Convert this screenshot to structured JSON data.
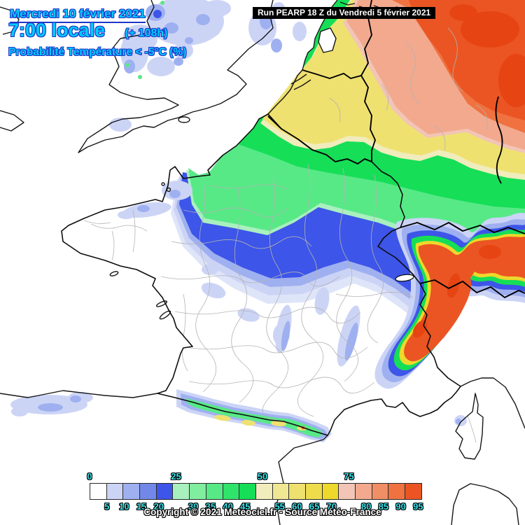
{
  "title_block": {
    "date": "Mercredi 10 février 2021",
    "time": "7:00 locale",
    "forecast_offset": "(+ 108h)",
    "subtitle": "Probabilité Température < -5°C (%)"
  },
  "run_banner": {
    "text": "Run PEARP 18 Z du Vendredi 5 février 2021"
  },
  "footer": {
    "copyright": "Copyright © 2021 Meteociel.fr - Source Météo-France"
  },
  "legend": {
    "unit": "%",
    "top_ticks": [
      0,
      25,
      50,
      75
    ],
    "bottom_ticks": [
      5,
      10,
      15,
      20,
      30,
      35,
      40,
      45,
      55,
      60,
      65,
      70,
      80,
      85,
      90,
      95
    ],
    "boxes": [
      {
        "from": 0,
        "to": 5,
        "color": "#ffffff"
      },
      {
        "from": 5,
        "to": 10,
        "color": "#ccd4f6"
      },
      {
        "from": 10,
        "to": 15,
        "color": "#9fb0f0"
      },
      {
        "from": 15,
        "to": 20,
        "color": "#7288e9"
      },
      {
        "from": 20,
        "to": 25,
        "color": "#3d55e8"
      },
      {
        "from": 25,
        "to": 30,
        "color": "#a9f0bf"
      },
      {
        "from": 30,
        "to": 35,
        "color": "#80ee9e"
      },
      {
        "from": 35,
        "to": 40,
        "color": "#58e987"
      },
      {
        "from": 40,
        "to": 45,
        "color": "#30e36a"
      },
      {
        "from": 45,
        "to": 50,
        "color": "#16de57"
      },
      {
        "from": 50,
        "to": 55,
        "color": "#f1ecbc"
      },
      {
        "from": 55,
        "to": 60,
        "color": "#f0e795"
      },
      {
        "from": 60,
        "to": 65,
        "color": "#efe170"
      },
      {
        "from": 65,
        "to": 70,
        "color": "#eedc4b"
      },
      {
        "from": 70,
        "to": 75,
        "color": "#eed82b"
      },
      {
        "from": 75,
        "to": 80,
        "color": "#f2c5b6"
      },
      {
        "from": 80,
        "to": 85,
        "color": "#f2a98e"
      },
      {
        "from": 85,
        "to": 90,
        "color": "#f08f66"
      },
      {
        "from": 90,
        "to": 95,
        "color": "#ef7240"
      },
      {
        "from": 95,
        "to": 100,
        "color": "#eb5523"
      }
    ]
  },
  "map": {
    "palette": {
      "white": "#ffffff",
      "blue_pale": "#dfe5f9",
      "blue_light": "#ccd4f6",
      "blue_med": "#9fb0f0",
      "blue_strong": "#3d55e8",
      "green_pale": "#a9f0bf",
      "green_mid": "#58e987",
      "green_bright": "#16de57",
      "yellow_pale": "#f1ecbc",
      "yellow_mid": "#efe170",
      "yellow_gold": "#eed82b",
      "salmon_pale": "#f2c5b6",
      "salmon": "#f2a98e",
      "orange": "#ef7240",
      "red": "#eb5523",
      "red_deep": "#e64513"
    }
  }
}
